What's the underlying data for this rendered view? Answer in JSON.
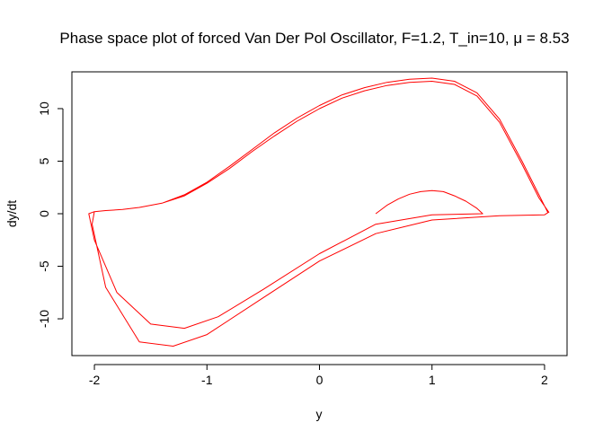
{
  "chart_data": {
    "type": "line",
    "title": "Phase space plot of forced Van Der Pol Oscillator, F=1.2, T_in=10, μ = 8.53",
    "xlabel": "y",
    "ylabel": "dy/dt",
    "xlim": [
      -2.2,
      2.2
    ],
    "ylim": [
      -13.5,
      13.5
    ],
    "xticks": [
      "-2",
      "-1",
      "0",
      "1",
      "2"
    ],
    "yticks": [
      "-10",
      "-5",
      "0",
      "5",
      "10"
    ],
    "grid": false,
    "line_color": "#ff0000",
    "series": [
      {
        "name": "",
        "x": [
          0.5,
          0.6,
          0.7,
          0.8,
          0.9,
          1.0,
          1.1,
          1.2,
          1.3,
          1.4,
          1.45,
          1.0,
          0.5,
          0.0,
          -0.5,
          -0.9,
          -1.2,
          -1.5,
          -1.8,
          -2.0,
          -2.05,
          -2.0,
          -1.9,
          -1.75,
          -1.6,
          -1.4,
          -1.2,
          -1.0,
          -0.8,
          -0.6,
          -0.4,
          -0.2,
          0.0,
          0.2,
          0.4,
          0.6,
          0.8,
          1.0,
          1.2,
          1.4,
          1.6,
          1.8,
          1.95,
          2.03,
          2.0,
          1.6,
          1.0,
          0.5,
          0.0,
          -0.5,
          -1.0,
          -1.3,
          -1.6,
          -1.9,
          -2.02,
          -2.0,
          -1.9,
          -1.75,
          -1.6,
          -1.4,
          -1.2,
          -1.0,
          -0.8,
          -0.6,
          -0.4,
          -0.2,
          0.0,
          0.2,
          0.4,
          0.6,
          0.8,
          1.0,
          1.2,
          1.4,
          1.6,
          1.8,
          1.95,
          2.04
        ],
        "y": [
          0.0,
          0.8,
          1.4,
          1.85,
          2.1,
          2.2,
          2.1,
          1.7,
          1.2,
          0.5,
          0.0,
          -0.1,
          -1.0,
          -3.8,
          -7.2,
          -9.8,
          -10.9,
          -10.5,
          -7.5,
          -2.5,
          0.0,
          0.2,
          0.3,
          0.4,
          0.6,
          1.0,
          1.8,
          3.0,
          4.5,
          6.1,
          7.7,
          9.1,
          10.3,
          11.3,
          12.0,
          12.5,
          12.8,
          12.9,
          12.6,
          11.5,
          9.0,
          5.0,
          1.8,
          0.1,
          -0.1,
          -0.2,
          -0.6,
          -1.9,
          -4.5,
          -8.0,
          -11.5,
          -12.6,
          -12.2,
          -7.0,
          -1.0,
          0.2,
          0.3,
          0.4,
          0.6,
          1.0,
          1.7,
          2.9,
          4.3,
          5.9,
          7.4,
          8.8,
          10.0,
          11.0,
          11.7,
          12.2,
          12.5,
          12.6,
          12.3,
          11.2,
          8.7,
          4.7,
          1.5,
          0.1
        ]
      }
    ]
  }
}
